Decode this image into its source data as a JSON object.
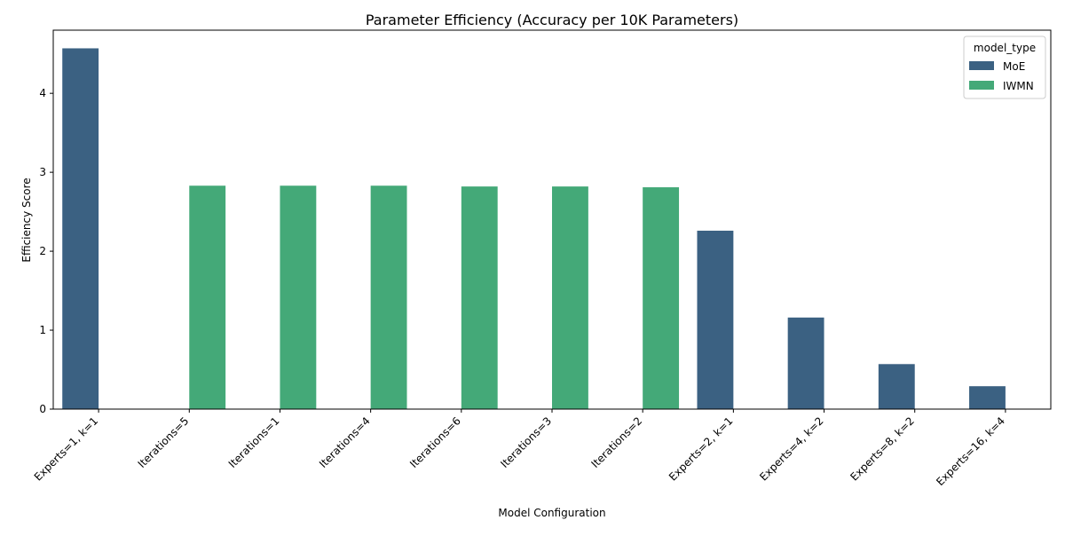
{
  "chart_data": {
    "type": "bar",
    "title": "Parameter Efficiency (Accuracy per 10K Parameters)",
    "xlabel": "Model Configuration",
    "ylabel": "Efficiency Score",
    "ylim": [
      0,
      4.8
    ],
    "yticks": [
      0,
      1,
      2,
      3,
      4
    ],
    "grid": false,
    "legend": {
      "title": "model_type",
      "position": "top-right"
    },
    "categories": [
      "Experts=1, k=1",
      "Iterations=5",
      "Iterations=1",
      "Iterations=4",
      "Iterations=6",
      "Iterations=3",
      "Iterations=2",
      "Experts=2, k=1",
      "Experts=4, k=2",
      "Experts=8, k=2",
      "Experts=16, k=4"
    ],
    "series": [
      {
        "name": "MoE",
        "color": "#3b6182",
        "values": [
          4.57,
          null,
          null,
          null,
          null,
          null,
          null,
          2.26,
          1.16,
          0.57,
          0.29
        ]
      },
      {
        "name": "IWMN",
        "color": "#44a978",
        "values": [
          null,
          2.83,
          2.83,
          2.83,
          2.82,
          2.82,
          2.81,
          null,
          null,
          null,
          null
        ]
      }
    ]
  }
}
